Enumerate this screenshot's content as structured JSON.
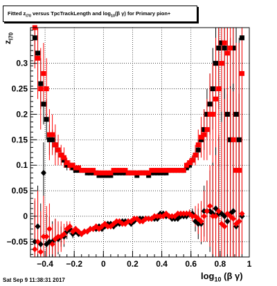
{
  "title": {
    "prefix": "Fitted  z",
    "sub1": "I70",
    "mid": " versus TpcTrackLength and log",
    "sub2": "10",
    "suffix": "(β γ) for Primary pion+"
  },
  "timestamp": "Sat Sep  9 11:38:31 2017",
  "chart_data": {
    "type": "scatter",
    "title": "Fitted z_I70 versus TpcTrackLength and log10(β γ) for Primary pion+",
    "xlabel": {
      "text": "log",
      "sub": "10",
      "rest": " (β γ)"
    },
    "ylabel": {
      "text": "z",
      "sub": "I70"
    },
    "xlim": [
      -0.5,
      1.0
    ],
    "ylim": [
      -0.08,
      0.37
    ],
    "xticks": [
      -0.4,
      -0.2,
      0,
      0.2,
      0.4,
      0.6,
      0.8,
      1
    ],
    "xtick_labels": [
      "−0.4",
      "−0.2",
      "0",
      "0.2",
      "0.4",
      "0.6",
      "0.8",
      "1"
    ],
    "yticks": [
      -0.05,
      0,
      0.05,
      0.1,
      0.15,
      0.2,
      0.25,
      0.3
    ],
    "ytick_labels": [
      "−0.05",
      "0",
      "0.05",
      "0.1",
      "0.15",
      "0.2",
      "0.25",
      "0.3"
    ],
    "grid": true,
    "series": [
      {
        "marker": "square",
        "color": "#000000",
        "x": [
          -0.47,
          -0.45,
          -0.43,
          -0.41,
          -0.39,
          -0.37,
          -0.35,
          -0.33,
          -0.31,
          -0.29,
          -0.27,
          -0.25,
          -0.23,
          -0.21,
          -0.19,
          -0.17,
          -0.15,
          -0.13,
          -0.11,
          -0.09,
          -0.07,
          -0.05,
          -0.03,
          -0.01,
          0.01,
          0.03,
          0.05,
          0.07,
          0.09,
          0.11,
          0.13,
          0.15,
          0.17,
          0.19,
          0.21,
          0.23,
          0.25,
          0.27,
          0.29,
          0.31,
          0.33,
          0.35,
          0.37,
          0.39,
          0.41,
          0.43,
          0.45,
          0.47,
          0.49,
          0.51,
          0.53,
          0.55,
          0.57,
          0.59,
          0.61,
          0.63,
          0.65,
          0.67,
          0.69,
          0.71,
          0.73,
          0.75,
          0.77,
          0.79,
          0.81,
          0.83,
          0.85,
          0.87,
          0.89,
          0.91,
          0.93,
          0.95
        ],
        "y": [
          0.35,
          0.32,
          0.26,
          0.22,
          0.19,
          0.15,
          0.15,
          0.14,
          0.13,
          0.12,
          0.11,
          0.1,
          0.1,
          0.095,
          0.09,
          0.09,
          0.09,
          0.09,
          0.085,
          0.085,
          0.085,
          0.085,
          0.08,
          0.08,
          0.08,
          0.08,
          0.08,
          0.085,
          0.085,
          0.085,
          0.085,
          0.085,
          0.085,
          0.085,
          0.085,
          0.08,
          0.085,
          0.085,
          0.085,
          0.08,
          0.085,
          0.085,
          0.085,
          0.085,
          0.085,
          0.085,
          0.09,
          0.09,
          0.09,
          0.09,
          0.09,
          0.09,
          0.095,
          0.1,
          0.11,
          0.12,
          0.13,
          0.15,
          0.17,
          0.2,
          0.22,
          0.25,
          0.3,
          0.33,
          0.34,
          0.33,
          0.2,
          0.15,
          0.33,
          0.2,
          0.15,
          0.35
        ],
        "err": [
          0.05,
          0.05,
          0.05,
          0.04,
          0.04,
          0.03,
          0.02,
          0.02,
          0.02,
          0.01,
          0.01,
          0.01,
          0.005,
          0.005,
          0.004,
          0.003,
          0.003,
          0.003,
          0.002,
          0.002,
          0.002,
          0.002,
          0.002,
          0.002,
          0.002,
          0.002,
          0.002,
          0.002,
          0.002,
          0.002,
          0.002,
          0.002,
          0.002,
          0.002,
          0.002,
          0.002,
          0.002,
          0.002,
          0.002,
          0.002,
          0.002,
          0.002,
          0.002,
          0.002,
          0.002,
          0.002,
          0.002,
          0.002,
          0.002,
          0.003,
          0.003,
          0.004,
          0.005,
          0.006,
          0.008,
          0.01,
          0.02,
          0.03,
          0.04,
          0.05,
          0.06,
          0.08,
          0.1,
          0.12,
          0.15,
          0.18,
          0.2,
          0.2,
          0.2,
          0.2,
          0.2,
          0.2
        ]
      },
      {
        "marker": "square",
        "color": "#ff0000",
        "x": [
          -0.47,
          -0.45,
          -0.43,
          -0.41,
          -0.39,
          -0.37,
          -0.35,
          -0.33,
          -0.31,
          -0.29,
          -0.27,
          -0.25,
          -0.23,
          -0.21,
          -0.19,
          -0.17,
          -0.15,
          -0.13,
          -0.11,
          -0.09,
          -0.07,
          -0.05,
          -0.03,
          -0.01,
          0.01,
          0.03,
          0.05,
          0.07,
          0.09,
          0.11,
          0.13,
          0.15,
          0.17,
          0.19,
          0.21,
          0.23,
          0.25,
          0.27,
          0.29,
          0.31,
          0.33,
          0.35,
          0.37,
          0.39,
          0.41,
          0.43,
          0.45,
          0.47,
          0.49,
          0.51,
          0.53,
          0.55,
          0.57,
          0.59,
          0.61,
          0.63,
          0.65,
          0.67,
          0.69,
          0.71,
          0.73,
          0.75,
          0.77,
          0.79,
          0.81,
          0.83,
          0.85,
          0.87,
          0.89,
          0.91,
          0.93,
          0.95
        ],
        "y": [
          0.37,
          0.31,
          0.25,
          0.28,
          0.25,
          0.16,
          0.16,
          0.14,
          0.13,
          0.12,
          0.115,
          0.105,
          0.1,
          0.1,
          0.095,
          0.095,
          0.09,
          0.09,
          0.09,
          0.09,
          0.09,
          0.085,
          0.085,
          0.085,
          0.085,
          0.085,
          0.085,
          0.09,
          0.09,
          0.09,
          0.09,
          0.09,
          0.085,
          0.085,
          0.085,
          0.085,
          0.085,
          0.085,
          0.085,
          0.085,
          0.09,
          0.09,
          0.09,
          0.09,
          0.09,
          0.09,
          0.09,
          0.09,
          0.09,
          0.09,
          0.09,
          0.09,
          0.1,
          0.105,
          0.11,
          0.12,
          0.14,
          0.155,
          0.16,
          0.17,
          0.2,
          0.2,
          0.23,
          0.25,
          0.3,
          0.34,
          0.32,
          0.33,
          0.15,
          0.09,
          0.09,
          0.28
        ],
        "err": [
          0.08,
          0.08,
          0.08,
          0.06,
          0.06,
          0.05,
          0.04,
          0.04,
          0.03,
          0.02,
          0.02,
          0.01,
          0.01,
          0.005,
          0.004,
          0.004,
          0.003,
          0.003,
          0.003,
          0.003,
          0.003,
          0.003,
          0.003,
          0.003,
          0.003,
          0.003,
          0.003,
          0.003,
          0.003,
          0.003,
          0.003,
          0.003,
          0.003,
          0.003,
          0.003,
          0.003,
          0.003,
          0.003,
          0.003,
          0.003,
          0.003,
          0.003,
          0.003,
          0.003,
          0.003,
          0.003,
          0.003,
          0.003,
          0.003,
          0.004,
          0.004,
          0.005,
          0.006,
          0.008,
          0.01,
          0.02,
          0.03,
          0.04,
          0.05,
          0.06,
          0.08,
          0.1,
          0.12,
          0.15,
          0.2,
          0.25,
          0.25,
          0.25,
          0.25,
          0.25,
          0.25,
          0.25
        ]
      },
      {
        "marker": "diamond",
        "color": "#000000",
        "x": [
          -0.47,
          -0.45,
          -0.43,
          -0.41,
          -0.39,
          -0.37,
          -0.35,
          -0.33,
          -0.31,
          -0.29,
          -0.27,
          -0.25,
          -0.23,
          -0.21,
          -0.19,
          -0.17,
          -0.15,
          -0.13,
          -0.11,
          -0.09,
          -0.07,
          -0.05,
          -0.03,
          -0.01,
          0.01,
          0.03,
          0.05,
          0.07,
          0.09,
          0.11,
          0.13,
          0.15,
          0.17,
          0.19,
          0.21,
          0.23,
          0.25,
          0.27,
          0.29,
          0.31,
          0.33,
          0.35,
          0.37,
          0.39,
          0.41,
          0.43,
          0.45,
          0.47,
          0.49,
          0.51,
          0.53,
          0.55,
          0.57,
          0.59,
          0.61,
          0.63,
          0.65,
          0.67,
          0.69,
          0.71,
          0.73,
          0.75,
          0.77,
          0.79,
          0.81,
          0.83,
          0.85,
          0.87,
          0.89,
          0.91,
          0.93,
          0.95
        ],
        "y": [
          -0.05,
          -0.02,
          -0.055,
          0.085,
          -0.055,
          -0.05,
          -0.05,
          -0.045,
          -0.045,
          -0.04,
          -0.04,
          -0.03,
          -0.025,
          -0.035,
          -0.03,
          -0.035,
          -0.035,
          -0.03,
          -0.03,
          -0.025,
          -0.025,
          -0.025,
          -0.02,
          -0.025,
          -0.02,
          -0.015,
          -0.015,
          -0.02,
          -0.015,
          -0.015,
          -0.01,
          -0.01,
          -0.01,
          -0.015,
          -0.01,
          -0.005,
          -0.005,
          -0.005,
          -0.005,
          -0.005,
          -0.005,
          -0.005,
          -0.005,
          0.005,
          0.005,
          0.0,
          0.0,
          -0.005,
          -0.005,
          -0.005,
          0.0,
          0.0,
          0.0,
          0.005,
          0.005,
          -0.01,
          -0.015,
          -0.015,
          0.01,
          0.01,
          0.01,
          0.005,
          0.015,
          0.005,
          0.005,
          0.0,
          -0.01,
          0.005,
          0.01,
          -0.02,
          -0.01,
          0.0
        ],
        "err": [
          0.08,
          0.08,
          0.08,
          0.06,
          0.06,
          0.05,
          0.04,
          0.04,
          0.03,
          0.02,
          0.02,
          0.015,
          0.01,
          0.008,
          0.006,
          0.005,
          0.005,
          0.004,
          0.004,
          0.004,
          0.003,
          0.003,
          0.003,
          0.003,
          0.003,
          0.003,
          0.003,
          0.003,
          0.003,
          0.003,
          0.003,
          0.003,
          0.003,
          0.003,
          0.003,
          0.003,
          0.003,
          0.003,
          0.003,
          0.003,
          0.003,
          0.003,
          0.003,
          0.003,
          0.003,
          0.003,
          0.003,
          0.003,
          0.003,
          0.004,
          0.004,
          0.005,
          0.006,
          0.008,
          0.01,
          0.02,
          0.03,
          0.04,
          0.05,
          0.06,
          0.08,
          0.1,
          0.12,
          0.15,
          0.2,
          0.25,
          0.25,
          0.25,
          0.25,
          0.25,
          0.25,
          0.25
        ]
      },
      {
        "marker": "diamond",
        "color": "#ff0000",
        "x": [
          -0.47,
          -0.45,
          -0.43,
          -0.41,
          -0.39,
          -0.37,
          -0.35,
          -0.33,
          -0.31,
          -0.29,
          -0.27,
          -0.25,
          -0.23,
          -0.21,
          -0.19,
          -0.17,
          -0.15,
          -0.13,
          -0.11,
          -0.09,
          -0.07,
          -0.05,
          -0.03,
          -0.01,
          0.01,
          0.03,
          0.05,
          0.07,
          0.09,
          0.11,
          0.13,
          0.15,
          0.17,
          0.19,
          0.21,
          0.23,
          0.25,
          0.27,
          0.29,
          0.31,
          0.33,
          0.35,
          0.37,
          0.39,
          0.41,
          0.43,
          0.45,
          0.47,
          0.49,
          0.51,
          0.53,
          0.55,
          0.57,
          0.59,
          0.61,
          0.63,
          0.65,
          0.67,
          0.69,
          0.71,
          0.73,
          0.75,
          0.77,
          0.79,
          0.81,
          0.83,
          0.85,
          0.87,
          0.89,
          0.91,
          0.93,
          0.95
        ],
        "y": [
          -0.065,
          -0.05,
          -0.07,
          -0.04,
          -0.04,
          -0.025,
          -0.055,
          -0.045,
          -0.04,
          -0.04,
          -0.035,
          -0.025,
          -0.02,
          -0.03,
          -0.025,
          -0.03,
          -0.035,
          -0.03,
          -0.03,
          -0.025,
          -0.025,
          -0.02,
          -0.025,
          -0.02,
          -0.015,
          -0.02,
          -0.02,
          -0.015,
          -0.01,
          -0.01,
          -0.015,
          -0.015,
          -0.01,
          -0.01,
          -0.005,
          -0.005,
          -0.01,
          -0.01,
          -0.005,
          -0.005,
          -0.005,
          0.0,
          0.0,
          0.0,
          0.0,
          0.005,
          0.0,
          0.0,
          0.0,
          0.005,
          0.005,
          0.005,
          0.005,
          0.005,
          0.0,
          0.0,
          -0.005,
          -0.01,
          0.0,
          0.01,
          0.02,
          0.0,
          0.0,
          0.01,
          -0.015,
          -0.02,
          0.005,
          0.0,
          -0.005,
          -0.015,
          -0.01,
          0.005
        ],
        "err": [
          0.1,
          0.1,
          0.08,
          0.08,
          0.06,
          0.05,
          0.04,
          0.04,
          0.03,
          0.03,
          0.02,
          0.015,
          0.01,
          0.008,
          0.006,
          0.005,
          0.005,
          0.004,
          0.004,
          0.004,
          0.003,
          0.003,
          0.003,
          0.003,
          0.003,
          0.003,
          0.003,
          0.003,
          0.003,
          0.003,
          0.003,
          0.003,
          0.003,
          0.003,
          0.003,
          0.003,
          0.003,
          0.003,
          0.003,
          0.003,
          0.003,
          0.003,
          0.003,
          0.003,
          0.003,
          0.003,
          0.003,
          0.003,
          0.003,
          0.004,
          0.004,
          0.005,
          0.006,
          0.008,
          0.01,
          0.02,
          0.03,
          0.04,
          0.05,
          0.06,
          0.08,
          0.1,
          0.12,
          0.15,
          0.2,
          0.25,
          0.25,
          0.25,
          0.25,
          0.25,
          0.25,
          0.25
        ]
      }
    ]
  }
}
